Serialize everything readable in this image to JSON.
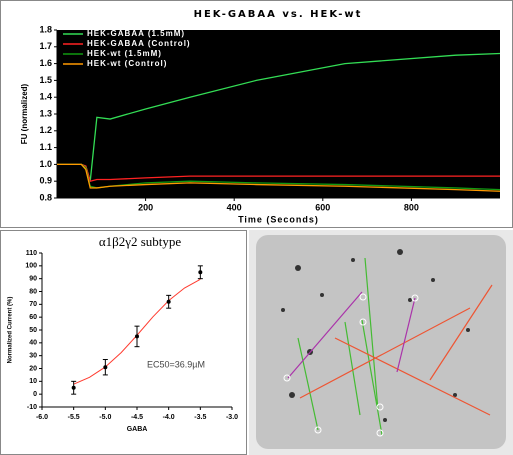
{
  "chart_data": [
    {
      "type": "line",
      "title": "HEK-GABAA vs. HEK-wt",
      "x_label": "Time (Seconds)",
      "y_label": "FU (normalized)",
      "x": [
        0,
        55,
        65,
        75,
        90,
        120,
        200,
        300,
        450,
        650,
        900,
        1000
      ],
      "series": [
        {
          "name": "HEK-GABAA (1.5mM)",
          "color": "#33dd55",
          "values": [
            1,
            1,
            0.99,
            0.9,
            1.28,
            1.27,
            1.33,
            1.4,
            1.5,
            1.6,
            1.65,
            1.66
          ]
        },
        {
          "name": "HEK-GABAA (Control)",
          "color": "#ff2222",
          "values": [
            1,
            1,
            0.99,
            0.9,
            0.91,
            0.91,
            0.92,
            0.93,
            0.93,
            0.93,
            0.93,
            0.93
          ]
        },
        {
          "name": "HEK-wt (1.5mM)",
          "color": "#119911",
          "values": [
            1,
            1,
            0.98,
            0.87,
            0.86,
            0.87,
            0.89,
            0.9,
            0.89,
            0.88,
            0.86,
            0.85
          ]
        },
        {
          "name": "HEK-wt (Control)",
          "color": "#ff9900",
          "values": [
            1,
            1,
            0.97,
            0.86,
            0.86,
            0.87,
            0.88,
            0.89,
            0.88,
            0.87,
            0.85,
            0.84
          ]
        }
      ],
      "xlim": [
        0,
        1000
      ],
      "xticks": [
        200,
        400,
        600,
        800
      ],
      "ylim": [
        0.8,
        1.8
      ],
      "yticks": [
        0.8,
        0.9,
        {
          "value": 1,
          "label": "1.0"
        },
        1.1,
        1.2,
        1.3,
        1.4,
        1.5,
        1.6,
        1.7,
        1.8
      ],
      "legend": "upper-left",
      "background": "#000000"
    },
    {
      "type": "scatter",
      "title": "α1β2γ2 subtype",
      "x_label": "GABA",
      "y_label": "Normalized Current (%)",
      "annotation": "EC50=36.9µM",
      "x": [
        -5.5,
        -5,
        -4.5,
        -4,
        -3.5
      ],
      "values": [
        5,
        21,
        45,
        72,
        95
      ],
      "errors": [
        5,
        6,
        8,
        5,
        5
      ],
      "color": "#000000",
      "curve": {
        "color": "#ff3b2f",
        "x": [
          -5.5,
          -5.25,
          -5,
          -4.75,
          -4.5,
          -4.25,
          -4,
          -3.75,
          -3.5
        ],
        "values": [
          7.8,
          13.1,
          21.2,
          32.4,
          45.9,
          60.2,
          72.9,
          82.7,
          89.5
        ]
      },
      "xlim": [
        -6,
        -3
      ],
      "xticks": [
        {
          "value": -6,
          "label": "-6.0"
        },
        -5.5,
        {
          "value": -5,
          "label": "-5.0"
        },
        -4.5,
        {
          "value": -4,
          "label": "-4.0"
        },
        -3.5,
        {
          "value": -3,
          "label": "-3.0"
        }
      ],
      "ylim": [
        -10,
        110
      ],
      "yticks": [
        -10,
        0,
        10,
        20,
        30,
        40,
        50,
        60,
        70,
        80,
        90,
        100,
        110
      ]
    }
  ]
}
